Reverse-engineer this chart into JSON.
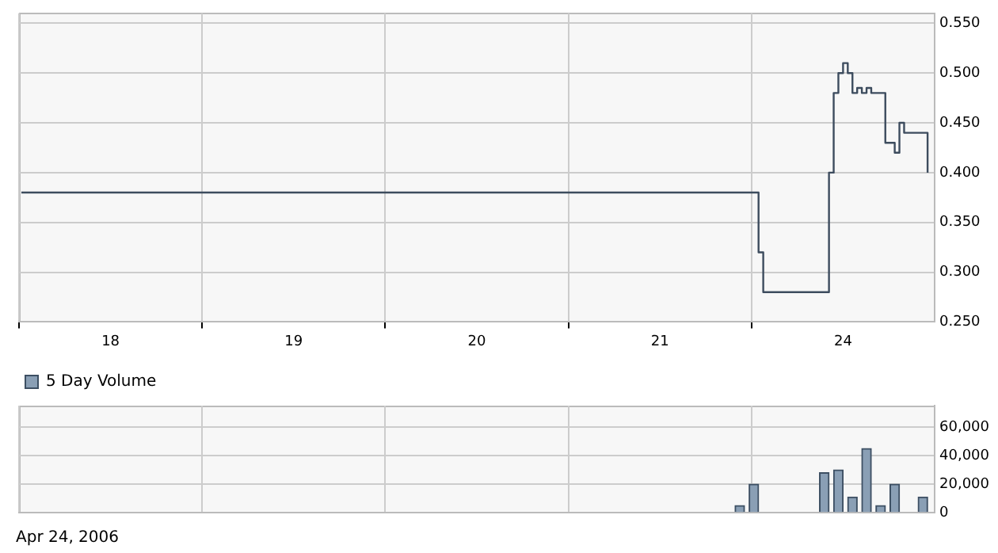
{
  "chart_data": [
    {
      "type": "step",
      "categories": [
        null,
        null,
        null,
        null,
        null,
        null,
        null,
        null,
        null,
        null,
        null,
        null,
        null,
        null,
        null,
        null,
        null,
        null,
        null,
        "18",
        null,
        null,
        null,
        null,
        null,
        null,
        null,
        null,
        null,
        null,
        null,
        null,
        null,
        null,
        null,
        null,
        null,
        null,
        null,
        null,
        null,
        null,
        null,
        null,
        null,
        null,
        null,
        null,
        null,
        null,
        null,
        null,
        null,
        null,
        null,
        null,
        null,
        null,
        "19",
        null,
        null,
        null,
        null,
        null,
        null,
        null,
        null,
        null,
        null,
        null,
        null,
        null,
        null,
        null,
        null,
        null,
        null,
        null,
        null,
        null,
        null,
        null,
        null,
        null,
        null,
        null,
        null,
        null,
        null,
        null,
        null,
        null,
        null,
        null,
        null,
        null,
        null,
        "20",
        null,
        null,
        null,
        null,
        null,
        null,
        null,
        null,
        null,
        null,
        null,
        null,
        null,
        null,
        null,
        null,
        null,
        null,
        null,
        null,
        null,
        null,
        null,
        null,
        null,
        null,
        null,
        null,
        null,
        null,
        null,
        null,
        null,
        null,
        null,
        null,
        null,
        null,
        "21",
        null,
        null,
        null,
        null,
        null,
        null,
        null,
        null,
        null,
        null,
        null,
        null,
        null,
        null,
        null,
        null,
        null,
        null,
        null,
        null,
        null,
        null,
        null,
        null,
        null,
        null,
        null,
        null,
        null,
        null,
        null,
        null,
        null,
        null,
        null,
        null,
        null,
        null,
        "24",
        null,
        null,
        null,
        null,
        null,
        null,
        null,
        null,
        null,
        null,
        null,
        null,
        null,
        null,
        null,
        null,
        null,
        null,
        null
      ],
      "ylim": [
        0.25,
        0.56
      ],
      "yticks": [
        {
          "value": 0.25,
          "label": "0.250"
        },
        {
          "value": 0.3,
          "label": "0.300"
        },
        {
          "value": 0.35,
          "label": "0.350"
        },
        {
          "value": 0.4,
          "label": "0.400"
        },
        {
          "value": 0.45,
          "label": "0.450"
        },
        {
          "value": 0.5,
          "label": "0.500"
        },
        {
          "value": 0.55,
          "label": "0.550"
        }
      ],
      "grid": true,
      "legend": false,
      "marker": "none",
      "series": [
        {
          "color": "#3d4c5e",
          "values": [
            0.38,
            0.38,
            0.38,
            0.38,
            0.38,
            0.38,
            0.38,
            0.38,
            0.38,
            0.38,
            0.38,
            0.38,
            0.38,
            0.38,
            0.38,
            0.38,
            0.38,
            0.38,
            0.38,
            0.38,
            0.38,
            0.38,
            0.38,
            0.38,
            0.38,
            0.38,
            0.38,
            0.38,
            0.38,
            0.38,
            0.38,
            0.38,
            0.38,
            0.38,
            0.38,
            0.38,
            0.38,
            0.38,
            0.38,
            0.38,
            0.38,
            0.38,
            0.38,
            0.38,
            0.38,
            0.38,
            0.38,
            0.38,
            0.38,
            0.38,
            0.38,
            0.38,
            0.38,
            0.38,
            0.38,
            0.38,
            0.38,
            0.38,
            0.38,
            0.38,
            0.38,
            0.38,
            0.38,
            0.38,
            0.38,
            0.38,
            0.38,
            0.38,
            0.38,
            0.38,
            0.38,
            0.38,
            0.38,
            0.38,
            0.38,
            0.38,
            0.38,
            0.38,
            0.38,
            0.38,
            0.38,
            0.38,
            0.38,
            0.38,
            0.38,
            0.38,
            0.38,
            0.38,
            0.38,
            0.38,
            0.38,
            0.38,
            0.38,
            0.38,
            0.38,
            0.38,
            0.38,
            0.38,
            0.38,
            0.38,
            0.38,
            0.38,
            0.38,
            0.38,
            0.38,
            0.38,
            0.38,
            0.38,
            0.38,
            0.38,
            0.38,
            0.38,
            0.38,
            0.38,
            0.38,
            0.38,
            0.38,
            0.38,
            0.38,
            0.38,
            0.38,
            0.38,
            0.38,
            0.38,
            0.38,
            0.38,
            0.38,
            0.38,
            0.38,
            0.38,
            0.38,
            0.38,
            0.38,
            0.38,
            0.38,
            0.38,
            0.38,
            0.38,
            0.38,
            0.38,
            0.38,
            0.38,
            0.38,
            0.38,
            0.38,
            0.38,
            0.38,
            0.38,
            0.38,
            0.38,
            0.38,
            0.38,
            0.38,
            0.38,
            0.38,
            0.38,
            0.38,
            0.32,
            0.28,
            0.28,
            0.28,
            0.28,
            0.28,
            0.28,
            0.28,
            0.28,
            0.28,
            0.28,
            0.28,
            0.28,
            0.28,
            0.28,
            0.4,
            0.48,
            0.5,
            0.51,
            0.5,
            0.48,
            0.485,
            0.48,
            0.485,
            0.48,
            0.48,
            0.48,
            0.43,
            0.43,
            0.42,
            0.45,
            0.44,
            0.44,
            0.44,
            0.44,
            0.44,
            0.4,
            null
          ]
        }
      ]
    },
    {
      "type": "bar",
      "categories": [
        null,
        null,
        null,
        null,
        null,
        null,
        null,
        null,
        null,
        null,
        null,
        null,
        null,
        null,
        null,
        null,
        null,
        null,
        null,
        "18",
        null,
        null,
        null,
        null,
        null,
        null,
        null,
        null,
        null,
        null,
        null,
        null,
        null,
        null,
        null,
        null,
        null,
        null,
        null,
        null,
        null,
        null,
        null,
        null,
        null,
        null,
        null,
        null,
        null,
        null,
        null,
        null,
        null,
        null,
        null,
        null,
        null,
        null,
        "19",
        null,
        null,
        null,
        null,
        null,
        null,
        null,
        null,
        null,
        null,
        null,
        null,
        null,
        null,
        null,
        null,
        null,
        null,
        null,
        null,
        null,
        null,
        null,
        null,
        null,
        null,
        null,
        null,
        null,
        null,
        null,
        null,
        null,
        null,
        null,
        null,
        null,
        null,
        "20",
        null,
        null,
        null,
        null,
        null,
        null,
        null,
        null,
        null,
        null,
        null,
        null,
        null,
        null,
        null,
        null,
        null,
        null,
        null,
        null,
        null,
        null,
        null,
        null,
        null,
        null,
        null,
        null,
        null,
        null,
        null,
        null,
        null,
        null,
        null,
        null,
        null,
        null,
        "21",
        null,
        null,
        null,
        null,
        null,
        null,
        null,
        null,
        null,
        null,
        null,
        null,
        null,
        null,
        null,
        null,
        null,
        null,
        null,
        null,
        null,
        null,
        null,
        null,
        null,
        null,
        null,
        null,
        null,
        null,
        null,
        null,
        null,
        null,
        null,
        null,
        null,
        null,
        "24",
        null,
        null,
        null,
        null,
        null,
        null,
        null,
        null,
        null,
        null,
        null,
        null,
        null,
        null,
        null,
        null,
        null,
        null,
        null
      ],
      "ylim": [
        0,
        75000
      ],
      "yticks": [
        {
          "value": 0,
          "label": "0"
        },
        {
          "value": 20000,
          "label": "20,000"
        },
        {
          "value": 40000,
          "label": "40,000"
        },
        {
          "value": 60000,
          "label": "60,000"
        }
      ],
      "grid": true,
      "legend": "top left",
      "tick_labels": "y",
      "annotations": [
        "Apr 24, 2006"
      ],
      "series": [
        {
          "name": "5 Day Volume",
          "color": "#8a9fb5",
          "values": [
            null,
            null,
            null,
            null,
            null,
            null,
            null,
            null,
            null,
            null,
            null,
            null,
            null,
            null,
            null,
            null,
            null,
            null,
            null,
            null,
            null,
            null,
            null,
            null,
            null,
            null,
            null,
            null,
            null,
            null,
            null,
            null,
            null,
            null,
            null,
            null,
            null,
            null,
            null,
            null,
            null,
            null,
            null,
            null,
            null,
            null,
            null,
            null,
            null,
            null,
            null,
            null,
            null,
            null,
            null,
            null,
            null,
            null,
            null,
            null,
            null,
            null,
            null,
            null,
            null,
            null,
            null,
            null,
            null,
            null,
            null,
            null,
            null,
            null,
            null,
            null,
            null,
            null,
            null,
            null,
            null,
            null,
            null,
            null,
            null,
            null,
            null,
            null,
            null,
            null,
            null,
            null,
            null,
            null,
            null,
            null,
            null,
            null,
            null,
            null,
            null,
            null,
            null,
            null,
            null,
            null,
            null,
            null,
            null,
            null,
            null,
            null,
            null,
            null,
            null,
            null,
            null,
            null,
            null,
            null,
            null,
            null,
            null,
            null,
            null,
            null,
            null,
            null,
            null,
            null,
            null,
            null,
            null,
            null,
            null,
            null,
            null,
            null,
            null,
            null,
            null,
            null,
            null,
            null,
            null,
            null,
            null,
            null,
            null,
            null,
            null,
            null,
            null,
            5000,
            null,
            null,
            20000,
            null,
            null,
            null,
            null,
            null,
            null,
            null,
            null,
            null,
            null,
            null,
            null,
            null,
            null,
            28000,
            null,
            null,
            30000,
            null,
            null,
            11000,
            null,
            null,
            45000,
            null,
            null,
            5000,
            null,
            null,
            20000,
            null,
            null,
            null,
            null,
            null,
            11000,
            null,
            null
          ]
        }
      ]
    }
  ]
}
